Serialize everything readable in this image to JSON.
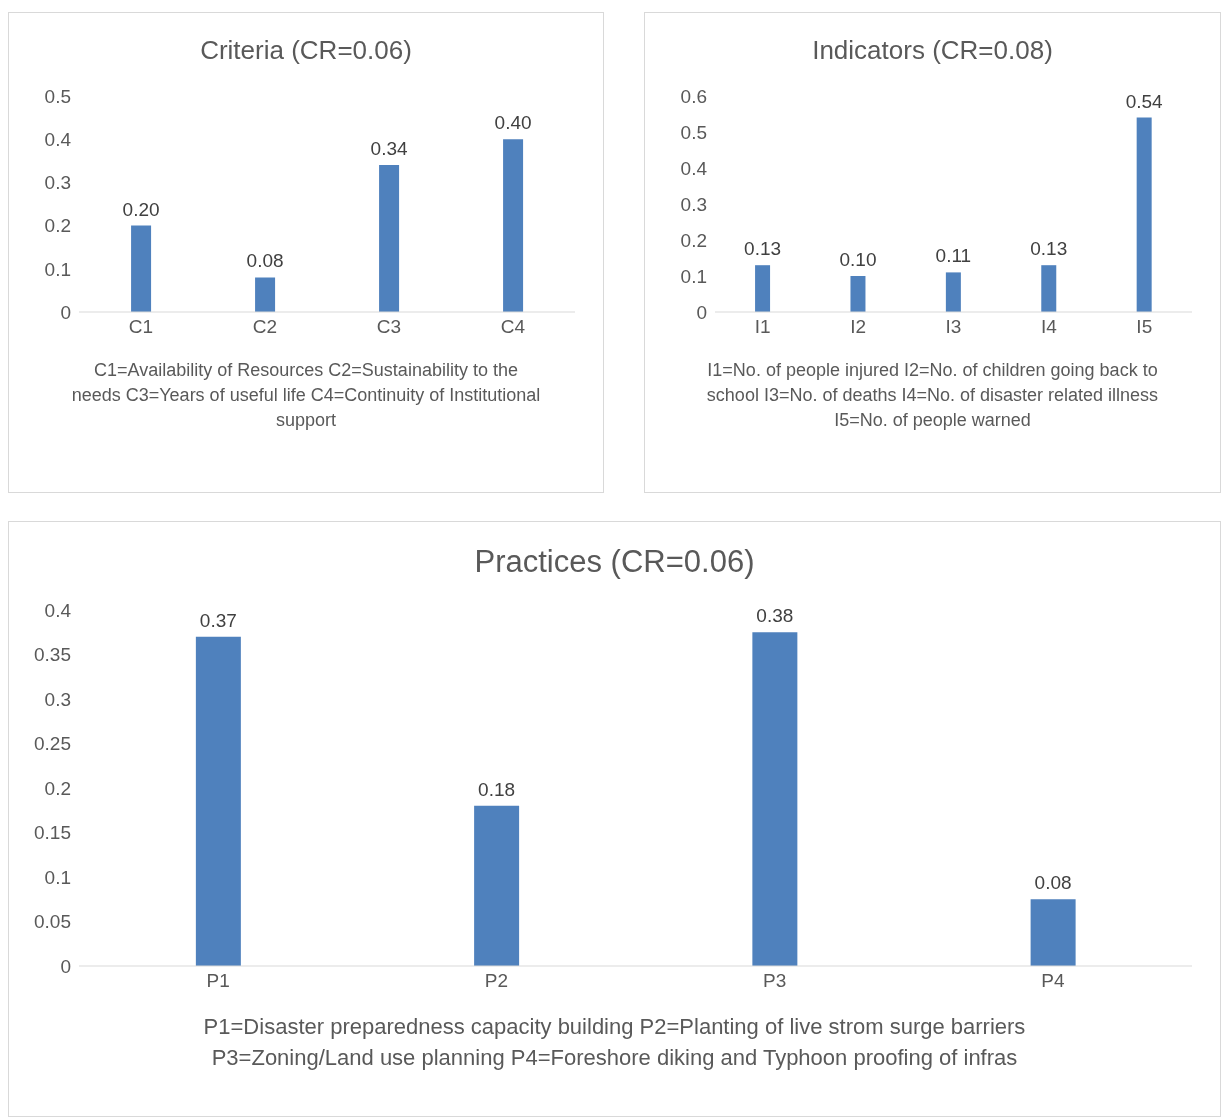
{
  "chart_data": [
    {
      "type": "bar",
      "title": "Criteria (CR=0.06)",
      "categories": [
        "C1",
        "C2",
        "C3",
        "C4"
      ],
      "values": [
        0.2,
        0.08,
        0.34,
        0.4
      ],
      "value_labels": [
        "0.20",
        "0.08",
        "0.34",
        "0.40"
      ],
      "color": "#4f81bd",
      "ylim": [
        0,
        0.5
      ],
      "yticks": [
        0,
        0.1,
        0.2,
        0.3,
        0.4,
        0.5
      ],
      "grid": false,
      "legend": false,
      "xlabel": "C1=Availability of Resources   C2=Sustainability to the needs  C3=Years of useful life   C4=Continuity of Institutional support"
    },
    {
      "type": "bar",
      "title": "Indicators (CR=0.08)",
      "categories": [
        "I1",
        "I2",
        "I3",
        "I4",
        "I5"
      ],
      "values": [
        0.13,
        0.1,
        0.11,
        0.13,
        0.54
      ],
      "value_labels": [
        "0.13",
        "0.10",
        "0.11",
        "0.13",
        "0.54"
      ],
      "color": "#4f81bd",
      "ylim": [
        0,
        0.6
      ],
      "yticks": [
        0,
        0.1,
        0.2,
        0.3,
        0.4,
        0.5,
        0.6
      ],
      "grid": false,
      "legend": false,
      "xlabel": "I1=No. of people injured   I2=No. of children going back to school   I3=No. of deaths I4=No. of disaster related illness   I5=No. of people warned"
    },
    {
      "type": "bar",
      "title": "Practices (CR=0.06)",
      "categories": [
        "P1",
        "P2",
        "P3",
        "P4"
      ],
      "values": [
        0.37,
        0.18,
        0.375,
        0.075
      ],
      "value_labels": [
        "0.37",
        "0.18",
        "0.38",
        "0.08"
      ],
      "color": "#4f81bd",
      "ylim": [
        0,
        0.4
      ],
      "yticks": [
        0,
        0.05,
        0.1,
        0.15,
        0.2,
        0.25,
        0.3,
        0.35,
        0.4
      ],
      "grid": false,
      "legend": false,
      "xlabel": "P1=Disaster preparedness capacity building  P2=Planting of live strom surge barriers P3=Zoning/Land use planning  P4=Foreshore diking and Typhoon proofing of infras"
    }
  ]
}
